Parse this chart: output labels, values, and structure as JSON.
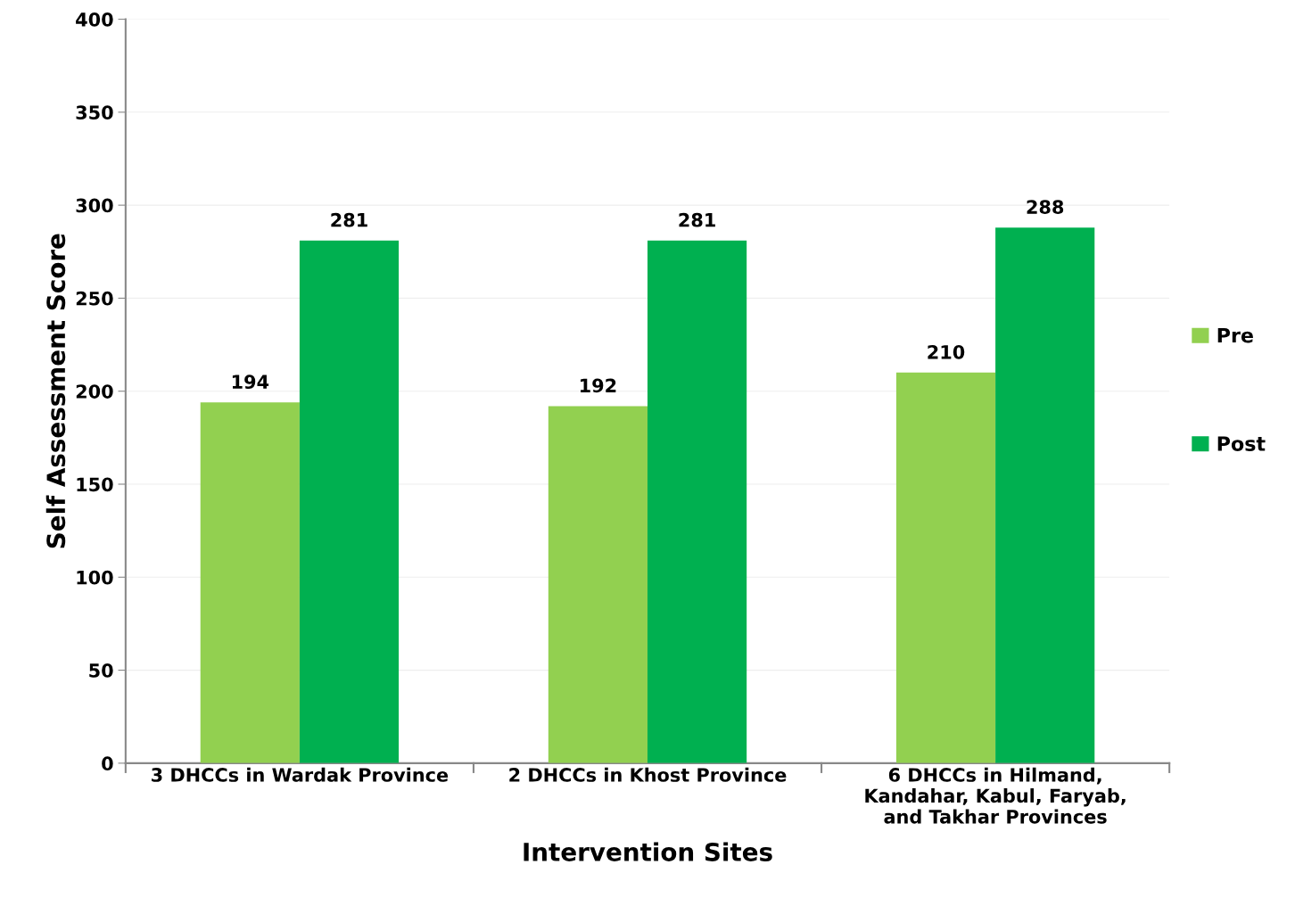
{
  "chart_data": {
    "type": "bar",
    "xlabel": "Intervention Sites",
    "ylabel": "Self Assessment Score",
    "categories": [
      "3 DHCCs in Wardak Province",
      "2 DHCCs in Khost Province",
      "6 DHCCs in Hilmand,\nKandahar, Kabul, Faryab,\nand Takhar Provinces"
    ],
    "series": [
      {
        "name": "Pre",
        "color": "#92d050",
        "values": [
          194,
          192,
          210
        ]
      },
      {
        "name": "Post",
        "color": "#00b050",
        "values": [
          281,
          281,
          288
        ]
      }
    ],
    "ylim": [
      0,
      400
    ],
    "yticks": [
      0,
      50,
      100,
      150,
      200,
      250,
      300,
      350,
      400
    ],
    "grid": "y",
    "legend": "right",
    "data_labels": true
  }
}
